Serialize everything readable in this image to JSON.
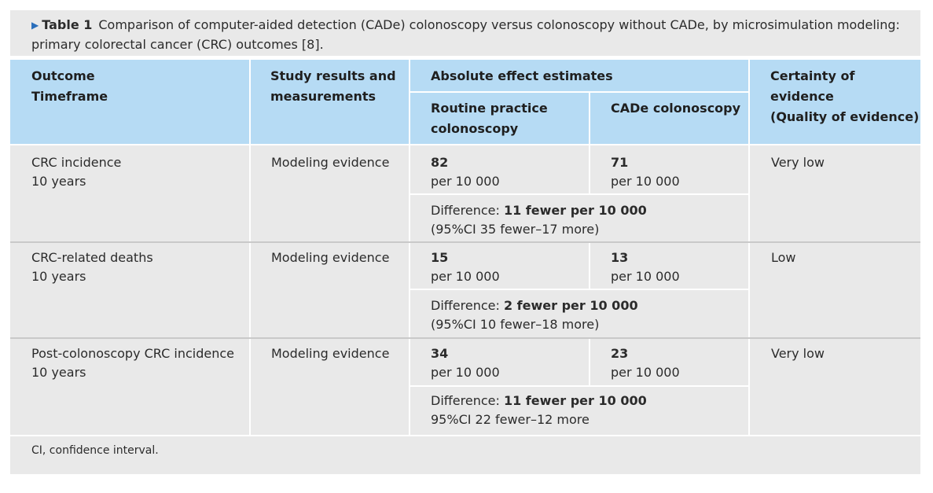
{
  "caption": {
    "label": "Table 1",
    "text": "Comparison of computer-aided detection (CADe) colonoscopy versus colonoscopy without CADe, by microsimulation modeling: primary colorectal cancer (CRC) outcomes [8]."
  },
  "header": {
    "outcome": "Outcome",
    "timeframe": "Timeframe",
    "study_line1": "Study results and",
    "study_line2": "measurements",
    "absolute": "Absolute effect estimates",
    "routine_line1": "Routine practice",
    "routine_line2": "colonoscopy",
    "cade": "CADe colonoscopy",
    "certainty_line1": "Certainty of evidence",
    "certainty_line2": "(Quality of evidence)"
  },
  "rows": [
    {
      "outcome": "CRC incidence",
      "timeframe": "10 years",
      "study": "Modeling evidence",
      "routine_value": "82",
      "routine_unit": "per 10 000",
      "cade_value": "71",
      "cade_unit": "per 10 000",
      "diff_label": "Difference:",
      "diff_value": "11 fewer per 10 000",
      "ci": "(95%CI 35 fewer–17 more)",
      "certainty": "Very low"
    },
    {
      "outcome": "CRC-related deaths",
      "timeframe": "10 years",
      "study": "Modeling evidence",
      "routine_value": "15",
      "routine_unit": "per 10 000",
      "cade_value": "13",
      "cade_unit": "per 10 000",
      "diff_label": "Difference:",
      "diff_value": "2 fewer per 10 000",
      "ci": "(95%CI 10 fewer–18 more)",
      "certainty": "Low"
    },
    {
      "outcome": "Post-colonoscopy CRC incidence",
      "timeframe": "10 years",
      "study": "Modeling evidence",
      "routine_value": "34",
      "routine_unit": "per 10 000",
      "cade_value": "23",
      "cade_unit": "per 10 000",
      "diff_label": "Difference:",
      "diff_value": "11 fewer per 10 000",
      "ci": "95%CI 22 fewer–12 more",
      "certainty": "Very low"
    }
  ],
  "footer": "CI, confidence interval.",
  "colors": {
    "header_bg": "#b6dbf4",
    "body_bg": "#e9e9e9",
    "accent": "#2a6ebb"
  }
}
